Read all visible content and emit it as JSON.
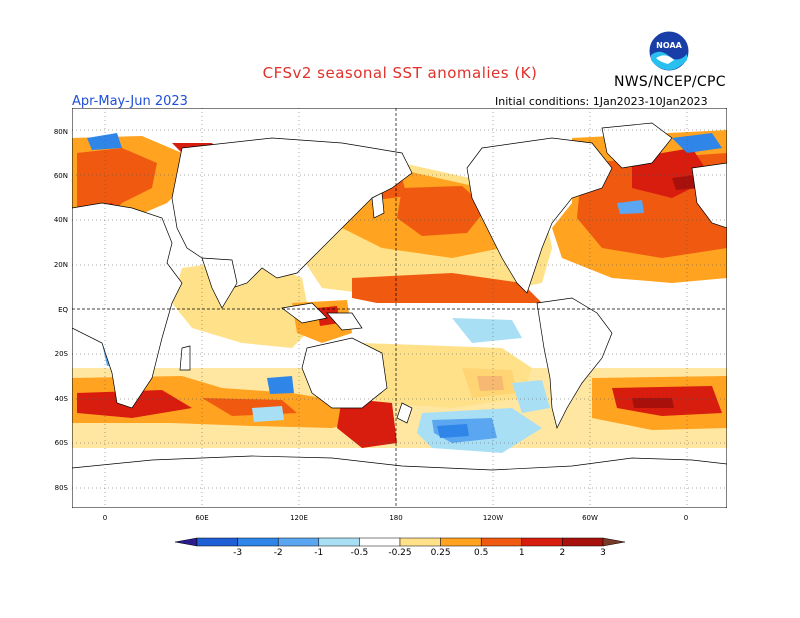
{
  "header": {
    "title": "CFSv2 seasonal SST anomalies (K)",
    "agency": "NWS/NCEP/CPC",
    "logo_text": "NOAA",
    "season": "Apr-May-Jun 2023",
    "initial_conditions": "Initial conditions: 1Jan2023-10Jan2023"
  },
  "axes": {
    "lat_labels": [
      "80N",
      "60N",
      "40N",
      "20N",
      "EQ",
      "20S",
      "40S",
      "60S",
      "80S"
    ],
    "lon_labels": [
      "0",
      "60E",
      "120E",
      "180",
      "120W",
      "60W",
      "0"
    ]
  },
  "colorbar": {
    "labels": [
      "-3",
      "-2",
      "-1",
      "-0.5",
      "-0.25",
      "0.25",
      "0.5",
      "1",
      "2",
      "3"
    ],
    "colors": [
      "#2a1b8e",
      "#1f5fd6",
      "#2f86e8",
      "#5aa6f0",
      "#a9dff5",
      "#ffffff",
      "#ffe18a",
      "#ffa320",
      "#f05a10",
      "#d81d0f",
      "#a8100c",
      "#7a3a28"
    ]
  },
  "map_colors": {
    "land": "#ffffff",
    "coast": "#000000",
    "neutral": "#ffffff",
    "weak_warm": "#ffe18a",
    "warm": "#ffa320",
    "strong_warm": "#f05a10",
    "very_warm": "#d81d0f",
    "extreme_warm": "#a8100c",
    "weak_cool": "#a9dff5",
    "cool": "#5aa6f0",
    "strong_cool": "#2f86e8"
  }
}
